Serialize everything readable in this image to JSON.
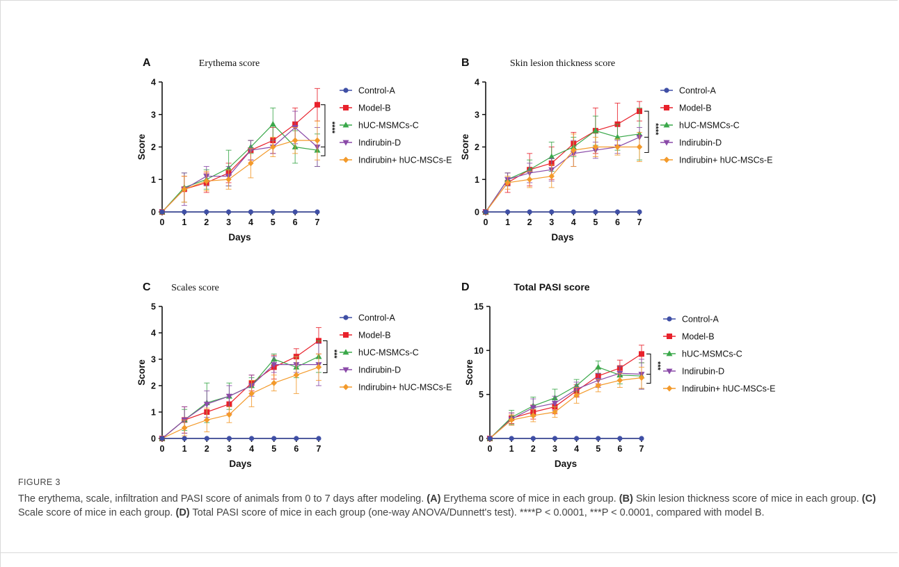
{
  "figure": {
    "label": "FIGURE 3",
    "caption": {
      "intro": "The erythema, scale, infiltration and PASI score of animals from 0 to 7 days after modeling.",
      "parts": [
        {
          "letter": "(A)",
          "text": " Erythema score of mice in each group. "
        },
        {
          "letter": "(B)",
          "text": " Skin lesion thickness score of mice in each group. "
        },
        {
          "letter": "(C)",
          "text": " Scale score of mice in each group. "
        },
        {
          "letter": "(D)",
          "text": " Total PASI score of mice in each group (one-way ANOVA/Dunnett's test). ****P < 0.0001, ***P < 0.0001, compared with model B."
        }
      ]
    }
  },
  "colors": {
    "Control-A": "#3f4fa5",
    "Model-B": "#e8212b",
    "hUC-MSMCs-C": "#3aa84a",
    "Indirubin-D": "#8a4aa8",
    "Indirubin+ hUC-MSCs-E": "#f39a2b"
  },
  "chart_data": [
    {
      "panel": "A",
      "type": "line",
      "title": "Erythema score",
      "xlabel": "Days",
      "ylabel": "Score",
      "x": [
        0,
        1,
        2,
        3,
        4,
        5,
        6,
        7
      ],
      "xlim": [
        0,
        7
      ],
      "ylim": [
        0,
        4
      ],
      "yticks": [
        0,
        1,
        2,
        3,
        4
      ],
      "significance": "****",
      "grid": false,
      "legend": "right",
      "series": [
        {
          "name": "Control-A",
          "marker": "circle",
          "values": [
            0,
            0,
            0,
            0,
            0,
            0,
            0,
            0
          ],
          "err": [
            0,
            0,
            0,
            0,
            0,
            0,
            0,
            0
          ]
        },
        {
          "name": "Model-B",
          "marker": "square",
          "values": [
            0,
            0.7,
            0.9,
            1.2,
            1.9,
            2.2,
            2.7,
            3.3
          ],
          "err": [
            0,
            0.4,
            0.3,
            0.3,
            0.3,
            0.4,
            0.5,
            0.5
          ]
        },
        {
          "name": "hUC-MSMCs-C",
          "marker": "triangle-up",
          "values": [
            0,
            0.75,
            1.0,
            1.35,
            2.0,
            2.7,
            2.0,
            1.9
          ],
          "err": [
            0,
            0.45,
            0.3,
            0.55,
            0.2,
            0.5,
            0.5,
            0.5
          ]
        },
        {
          "name": "Indirubin-D",
          "marker": "triangle-down",
          "values": [
            0,
            0.7,
            1.1,
            1.1,
            1.9,
            2.0,
            2.6,
            2.0
          ],
          "err": [
            0,
            0.5,
            0.3,
            0.3,
            0.3,
            0.2,
            0.5,
            0.6
          ]
        },
        {
          "name": "Indirubin+ hUC-MSCs-E",
          "marker": "diamond",
          "values": [
            0,
            0.7,
            0.95,
            1.0,
            1.5,
            2.0,
            2.2,
            2.2
          ],
          "err": [
            0,
            0.4,
            0.3,
            0.3,
            0.45,
            0.3,
            0.4,
            0.6
          ]
        }
      ]
    },
    {
      "panel": "B",
      "type": "line",
      "title": "Skin lesion thickness score",
      "xlabel": "Days",
      "ylabel": "Score",
      "x": [
        0,
        1,
        2,
        3,
        4,
        5,
        6,
        7
      ],
      "xlim": [
        0,
        7
      ],
      "ylim": [
        0,
        4
      ],
      "yticks": [
        0,
        1,
        2,
        3,
        4
      ],
      "significance": "****",
      "grid": false,
      "legend": "right",
      "series": [
        {
          "name": "Control-A",
          "marker": "circle",
          "values": [
            0,
            0,
            0,
            0,
            0,
            0,
            0,
            0
          ],
          "err": [
            0,
            0,
            0,
            0,
            0,
            0,
            0,
            0
          ]
        },
        {
          "name": "Model-B",
          "marker": "square",
          "values": [
            0,
            0.9,
            1.3,
            1.5,
            2.1,
            2.5,
            2.7,
            3.1
          ],
          "err": [
            0,
            0.3,
            0.5,
            0.5,
            0.35,
            0.7,
            0.65,
            0.3
          ]
        },
        {
          "name": "hUC-MSMCs-C",
          "marker": "triangle-up",
          "values": [
            0,
            1.0,
            1.3,
            1.7,
            2.0,
            2.5,
            2.3,
            2.4
          ],
          "err": [
            0,
            0.2,
            0.3,
            0.45,
            0.3,
            0.45,
            0.4,
            0.8
          ]
        },
        {
          "name": "Indirubin-D",
          "marker": "triangle-down",
          "values": [
            0,
            1.0,
            1.2,
            1.3,
            1.8,
            1.9,
            2.0,
            2.3
          ],
          "err": [
            0,
            0.2,
            0.3,
            0.35,
            0.4,
            0.25,
            0.2,
            0.3
          ]
        },
        {
          "name": "Indirubin+ hUC-MSCs-E",
          "marker": "diamond",
          "values": [
            0,
            0.9,
            1.0,
            1.1,
            1.9,
            2.0,
            2.0,
            2.0
          ],
          "err": [
            0,
            0.2,
            0.25,
            0.35,
            0.5,
            0.3,
            0.25,
            0.45
          ]
        }
      ]
    },
    {
      "panel": "C",
      "type": "line",
      "title": "Scales score",
      "xlabel": "Days",
      "ylabel": "Score",
      "x": [
        0,
        1,
        2,
        3,
        4,
        5,
        6,
        7
      ],
      "xlim": [
        0,
        7
      ],
      "ylim": [
        0,
        5
      ],
      "yticks": [
        0,
        1,
        2,
        3,
        4,
        5
      ],
      "significance": "***",
      "grid": false,
      "legend": "right",
      "series": [
        {
          "name": "Control-A",
          "marker": "circle",
          "values": [
            0,
            0,
            0,
            0,
            0,
            0,
            0,
            0
          ],
          "err": [
            0,
            0,
            0,
            0,
            0,
            0,
            0,
            0
          ]
        },
        {
          "name": "Model-B",
          "marker": "square",
          "values": [
            0,
            0.7,
            1.0,
            1.3,
            2.1,
            2.7,
            3.1,
            3.7
          ],
          "err": [
            0,
            0.5,
            0.3,
            0.35,
            0.3,
            0.45,
            0.3,
            0.5
          ]
        },
        {
          "name": "hUC-MSMCs-C",
          "marker": "triangle-up",
          "values": [
            0,
            0.7,
            1.35,
            1.6,
            2.0,
            3.0,
            2.7,
            3.1
          ],
          "err": [
            0,
            0.4,
            0.75,
            0.5,
            0.3,
            0.2,
            0.4,
            0.6
          ]
        },
        {
          "name": "Indirubin-D",
          "marker": "triangle-down",
          "values": [
            0,
            0.7,
            1.3,
            1.6,
            2.0,
            2.8,
            2.8,
            2.8
          ],
          "err": [
            0,
            0.5,
            0.5,
            0.4,
            0.4,
            0.3,
            0.3,
            0.8
          ]
        },
        {
          "name": "Indirubin+ hUC-MSCs-E",
          "marker": "diamond",
          "values": [
            0,
            0.4,
            0.7,
            0.9,
            1.7,
            2.1,
            2.4,
            2.7
          ],
          "err": [
            0,
            0.3,
            0.45,
            0.3,
            0.5,
            0.3,
            0.7,
            0.5
          ]
        }
      ]
    },
    {
      "panel": "D",
      "type": "line",
      "title": "Total PASI score",
      "xlabel": "Days",
      "ylabel": "Score",
      "x": [
        0,
        1,
        2,
        3,
        4,
        5,
        6,
        7
      ],
      "xlim": [
        0,
        7
      ],
      "ylim": [
        0,
        15
      ],
      "yticks": [
        0,
        5,
        10,
        15
      ],
      "significance": "***",
      "grid": false,
      "legend": "right",
      "series": [
        {
          "name": "Control-A",
          "marker": "circle",
          "values": [
            0,
            0,
            0,
            0,
            0,
            0,
            0,
            0
          ],
          "err": [
            0,
            0,
            0,
            0,
            0,
            0,
            0,
            0
          ]
        },
        {
          "name": "Model-B",
          "marker": "square",
          "values": [
            0,
            2.3,
            3.0,
            3.6,
            5.4,
            7.1,
            8.0,
            9.6
          ],
          "err": [
            0,
            0.6,
            0.8,
            0.8,
            0.7,
            0.9,
            0.9,
            1.0
          ]
        },
        {
          "name": "hUC-MSMCs-C",
          "marker": "triangle-up",
          "values": [
            0,
            2.4,
            3.7,
            4.6,
            6.0,
            8.1,
            7.2,
            7.1
          ],
          "err": [
            0,
            0.8,
            1.0,
            1.0,
            0.7,
            0.7,
            1.0,
            1.5
          ]
        },
        {
          "name": "Indirubin-D",
          "marker": "triangle-down",
          "values": [
            0,
            2.2,
            3.5,
            4.0,
            5.6,
            6.6,
            7.4,
            7.3
          ],
          "err": [
            0,
            0.7,
            1.0,
            0.8,
            0.8,
            0.8,
            0.8,
            1.7
          ]
        },
        {
          "name": "Indirubin+ hUC-MSCs-E",
          "marker": "diamond",
          "values": [
            0,
            2.1,
            2.6,
            3.0,
            4.9,
            6.0,
            6.6,
            6.9
          ],
          "err": [
            0,
            0.6,
            0.7,
            0.6,
            0.9,
            0.7,
            0.8,
            1.2
          ]
        }
      ]
    }
  ]
}
